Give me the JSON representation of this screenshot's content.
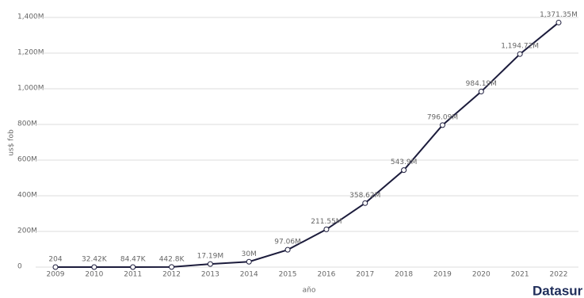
{
  "chart_data": {
    "type": "line",
    "y_label": "us$ fob",
    "x_label": "año",
    "brand": "Datasur",
    "categories": [
      "2009",
      "2010",
      "2011",
      "2012",
      "2013",
      "2014",
      "2015",
      "2016",
      "2017",
      "2018",
      "2019",
      "2020",
      "2021",
      "2022"
    ],
    "values": [
      204,
      32420,
      84470,
      442800,
      17190000,
      30000000,
      97060000,
      211550000,
      358620000,
      543900000,
      796090000,
      984190000,
      1194720000,
      1371350000
    ],
    "value_labels": [
      "204",
      "32.42K",
      "84.47K",
      "442.8K",
      "17.19M",
      "30M",
      "97.06M",
      "211.55M",
      "358.62M",
      "543.9M",
      "796.09M",
      "984.19M",
      "1,194.72M",
      "1,371.35M"
    ],
    "color": "#1c1c3c",
    "ylim": [
      0,
      1400000000
    ],
    "yticks": [
      0,
      {
        "value": 200000000,
        "label": "200M"
      },
      {
        "value": 400000000,
        "label": "400M"
      },
      {
        "value": 600000000,
        "label": "600M"
      },
      {
        "value": 800000000,
        "label": "800M"
      },
      {
        "value": 1000000000,
        "label": "1,000M"
      },
      {
        "value": 1200000000,
        "label": "1,200M"
      },
      {
        "value": 1400000000,
        "label": "1,400M"
      }
    ],
    "grid": true
  }
}
